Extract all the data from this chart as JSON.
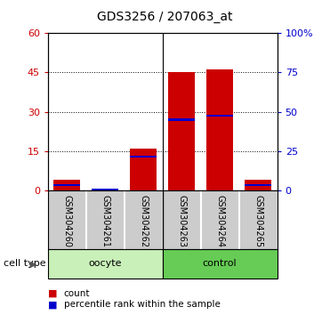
{
  "title": "GDS3256 / 207063_at",
  "samples": [
    "GSM304260",
    "GSM304261",
    "GSM304262",
    "GSM304263",
    "GSM304264",
    "GSM304265"
  ],
  "red_values": [
    4,
    0.4,
    16,
    45,
    46,
    4
  ],
  "blue_values": [
    2.0,
    0.2,
    13.0,
    27.0,
    28.5,
    2.0
  ],
  "ylim_left": [
    0,
    60
  ],
  "ylim_right": [
    0,
    100
  ],
  "yticks_left": [
    0,
    15,
    30,
    45,
    60
  ],
  "yticks_right": [
    0,
    25,
    50,
    75,
    100
  ],
  "ytick_labels_right": [
    "0",
    "25",
    "50",
    "75",
    "100%"
  ],
  "groups": [
    {
      "label": "oocyte",
      "indices": [
        0,
        1,
        2
      ],
      "color": "#c8f0b8"
    },
    {
      "label": "control",
      "indices": [
        3,
        4,
        5
      ],
      "color": "#66cc55"
    }
  ],
  "bar_color": "#cc0000",
  "blue_color": "#0000cc",
  "group_label": "cell type",
  "legend_items": [
    {
      "color": "#cc0000",
      "label": "count"
    },
    {
      "color": "#0000cc",
      "label": "percentile rank within the sample"
    }
  ],
  "bar_width": 0.7,
  "tick_label_color_left": "#cc0000",
  "tick_label_color_right": "#0000cc",
  "bg_color": "#ffffff",
  "plot_bg_color": "#ffffff",
  "gray_bg": "#cccccc",
  "title_fontsize": 10,
  "label_fontsize": 7,
  "group_fontsize": 8,
  "legend_fontsize": 7.5
}
